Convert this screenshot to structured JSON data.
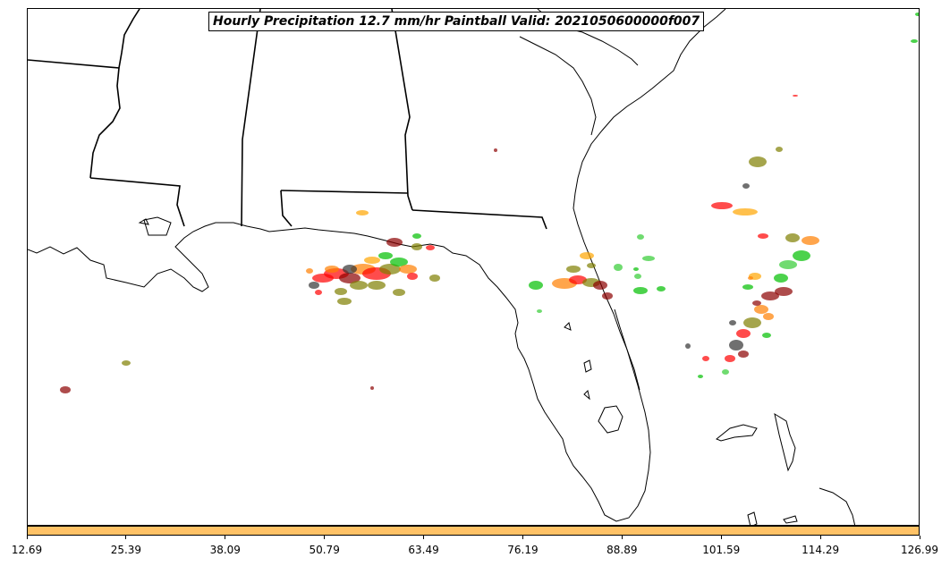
{
  "title": "Hourly Precipitation 12.7 mm/hr Paintball Valid: 2021050600000f007",
  "colorbar": {
    "color": "#ffc266",
    "tick_labels": [
      "12.69",
      "25.39",
      "38.09",
      "50.79",
      "63.49",
      "76.19",
      "88.89",
      "101.59",
      "114.29",
      "126.99"
    ]
  },
  "paintball_colors": [
    "#ff0000",
    "#ff7f00",
    "#7f7f00",
    "#00bf00",
    "#8b0000",
    "#333333",
    "#ffa500",
    "#33cc33"
  ]
}
